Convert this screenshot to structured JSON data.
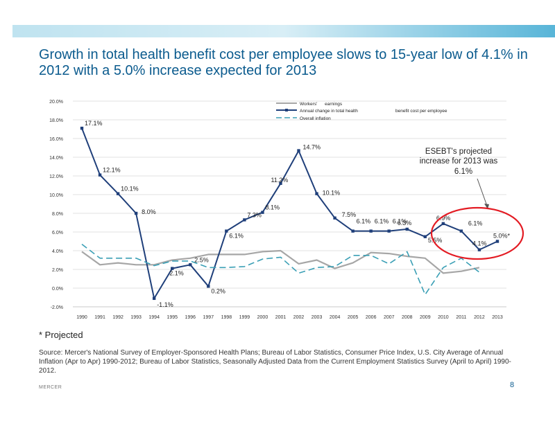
{
  "slide": {
    "title": "Growth in total health benefit cost per employee slows to 15-year low of 4.1% in 2012 with a 5.0% increase expected for 2013",
    "projected_note": "* Projected",
    "source": "Source: Mercer's National Survey of Employer-Sponsored Health Plans; Bureau of Labor Statistics, Consumer Price Index, U.S. City Average of Annual Inflation (Apr to Apr) 1990-2012; Bureau of Labor Statistics, Seasonally Adjusted Data from the Current Employment Statistics Survey (April to April) 1990-2012.",
    "footer": "MERCER",
    "page_number": "8",
    "accent_color": "#0b5b8e"
  },
  "chart_data": {
    "type": "line",
    "title": "",
    "xlabel": "",
    "ylabel": "",
    "x": [
      "1990",
      "1991",
      "1992",
      "1993",
      "1994",
      "1995",
      "1996",
      "1997",
      "1998",
      "1999",
      "2000",
      "2001",
      "2002",
      "2003",
      "2004",
      "2005",
      "2006",
      "2007",
      "2008",
      "2009",
      "2010",
      "2011",
      "2012",
      "2013"
    ],
    "ylim": [
      -2,
      20
    ],
    "yticks": [
      "-2.0%",
      "0.0%",
      "2.0%",
      "4.0%",
      "6.0%",
      "8.0%",
      "10.0%",
      "12.0%",
      "14.0%",
      "16.0%",
      "18.0%",
      "20.0%"
    ],
    "ytick_values": [
      -2,
      0,
      2,
      4,
      6,
      8,
      10,
      12,
      14,
      16,
      18,
      20
    ],
    "legend_position": "top",
    "series": [
      {
        "name": "Workers' earnings",
        "legend_label": "Workers'      earnings",
        "color": "#a6a6a6",
        "style": "solid",
        "values": [
          3.9,
          2.5,
          2.7,
          2.5,
          2.5,
          3.0,
          3.2,
          3.6,
          3.6,
          3.6,
          3.9,
          4.0,
          2.6,
          3.0,
          2.1,
          2.7,
          3.8,
          3.7,
          3.4,
          3.2,
          1.6,
          1.8,
          2.2,
          null
        ]
      },
      {
        "name": "Annual change in total health benefit cost per employee",
        "legend_label": "Annual change in total health                              benefit cost per employee",
        "color": "#1f3f7a",
        "style": "solid-markers",
        "values": [
          17.1,
          12.1,
          10.1,
          8.0,
          -1.1,
          2.1,
          2.5,
          0.2,
          6.1,
          7.3,
          8.1,
          11.2,
          14.7,
          10.1,
          7.5,
          6.1,
          6.1,
          6.1,
          6.3,
          5.5,
          6.9,
          6.1,
          4.1,
          5.0
        ],
        "labels": [
          "17.1%",
          "12.1%",
          "10.1%",
          "8.0%",
          "-1.1%",
          "2.1%",
          "2.5%",
          "0.2%",
          "6.1%",
          "7.3%",
          "8.1%",
          "11.2%",
          "14.7%",
          "10.1%",
          "7.5%",
          "6.1%",
          "6.1%",
          "6.1%",
          "6.3%",
          "5.5%",
          "6.9%",
          "6.1%",
          "4.1%",
          "5.0%*"
        ]
      },
      {
        "name": "Overall inflation",
        "legend_label": "Overall inflation",
        "color": "#3a9fb5",
        "style": "dashed",
        "values": [
          4.7,
          3.2,
          3.2,
          3.2,
          2.4,
          2.9,
          2.9,
          2.2,
          2.2,
          2.3,
          3.1,
          3.3,
          1.6,
          2.2,
          2.3,
          3.5,
          3.5,
          2.6,
          3.9,
          -0.7,
          2.2,
          3.2,
          1.7,
          null
        ]
      }
    ],
    "annotations": [
      {
        "id": "esebt",
        "text_lines": [
          "ESEBT's projected",
          "increase for 2013 was",
          "6.1%"
        ]
      }
    ]
  }
}
